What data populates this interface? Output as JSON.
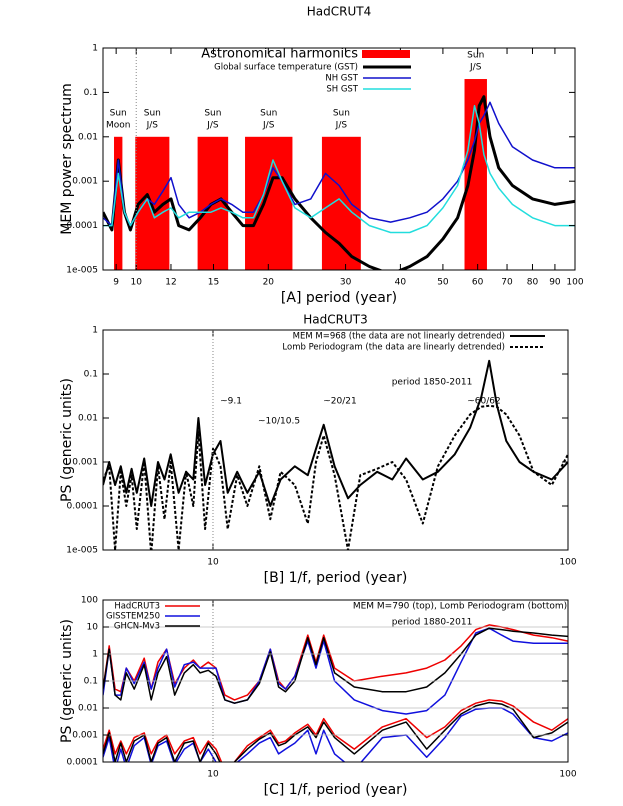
{
  "chart_data": [
    {
      "type": "line",
      "title": "HadCRUT4",
      "xlabel": "[A]   period (year)",
      "ylabel": "MEM power spectrum",
      "xscale": "log",
      "yscale": "log",
      "xlim": [
        8.4,
        100
      ],
      "ylim": [
        1e-05,
        1
      ],
      "xticks": [
        9,
        10,
        12,
        15,
        20,
        30,
        40,
        50,
        60,
        70,
        80,
        90,
        100
      ],
      "yticks": [
        1,
        0.1,
        0.01,
        0.001,
        0.0001,
        {
          "value": 1e-05,
          "label": "1e-005"
        }
      ],
      "grid": false,
      "vline": 10,
      "harmonics": {
        "name": "Astronomical harmonics",
        "color": "#ff0000",
        "bars": [
          {
            "lines": [
              "Sun",
              "Moon"
            ],
            "range": [
              8.9,
              9.3
            ],
            "value": 0.01
          },
          {
            "lines": [
              "Sun",
              "J/S"
            ],
            "range": [
              9.95,
              11.9
            ],
            "value": 0.01
          },
          {
            "lines": [
              "Sun",
              "J/S"
            ],
            "range": [
              13.8,
              16.2
            ],
            "value": 0.01
          },
          {
            "lines": [
              "Sun",
              "J/S"
            ],
            "range": [
              17.7,
              22.7
            ],
            "value": 0.01
          },
          {
            "lines": [
              "Sun",
              "J/S"
            ],
            "range": [
              26.5,
              32.5
            ],
            "value": 0.01
          },
          {
            "lines": [
              "Sun",
              "J/S"
            ],
            "range": [
              56,
              63
            ],
            "value": 0.2
          }
        ]
      },
      "x": [
        8.4,
        8.8,
        9.1,
        9.4,
        9.7,
        10.1,
        10.6,
        11.0,
        11.5,
        12.0,
        12.5,
        13.2,
        14.0,
        14.8,
        15.6,
        16.5,
        17.5,
        18.5,
        19.5,
        20.5,
        21.5,
        23,
        25,
        27,
        29,
        31,
        34,
        38,
        42,
        46,
        50,
        54,
        57,
        59,
        60.5,
        62,
        64,
        67,
        72,
        80,
        90,
        100
      ],
      "series": [
        {
          "name": "Global surface temperature (GST)",
          "color": "#000000",
          "width": 3,
          "values": [
            0.0002,
            8e-05,
            0.003,
            0.0002,
            8e-05,
            0.0003,
            0.0005,
            0.0002,
            0.0003,
            0.0004,
            0.0001,
            8e-05,
            0.00015,
            0.0003,
            0.0004,
            0.0002,
            0.0001,
            0.0001,
            0.0003,
            0.0012,
            0.0012,
            0.0004,
            0.00015,
            7e-05,
            4e-05,
            2e-05,
            1.2e-05,
            8e-06,
            1.2e-05,
            2e-05,
            5e-05,
            0.00015,
            0.0008,
            0.005,
            0.05,
            0.08,
            0.01,
            0.002,
            0.0008,
            0.0004,
            0.0003,
            0.00035
          ]
        },
        {
          "name": "NH GST",
          "color": "#1010cc",
          "width": 1.5,
          "values": [
            0.00015,
            0.0001,
            0.003,
            0.0002,
            0.0001,
            0.0002,
            0.0004,
            0.0003,
            0.0006,
            0.0012,
            0.0003,
            0.00015,
            0.0002,
            0.0003,
            0.0004,
            0.0003,
            0.0002,
            0.0002,
            0.0005,
            0.002,
            0.001,
            0.0003,
            0.0004,
            0.0015,
            0.0008,
            0.0003,
            0.00015,
            0.00012,
            0.00015,
            0.0002,
            0.0004,
            0.001,
            0.003,
            0.008,
            0.02,
            0.03,
            0.06,
            0.02,
            0.006,
            0.003,
            0.002,
            0.002
          ]
        },
        {
          "name": "SH GST",
          "color": "#22dddd",
          "width": 1.5,
          "values": [
            0.0001,
            0.0001,
            0.0015,
            0.0002,
            0.0001,
            0.0002,
            0.0004,
            0.00015,
            0.0002,
            0.00025,
            0.00015,
            0.0002,
            0.0002,
            0.0002,
            0.00025,
            0.0002,
            0.00015,
            0.00015,
            0.0005,
            0.003,
            0.001,
            0.00025,
            0.00015,
            0.00025,
            0.0004,
            0.0002,
            0.0001,
            7e-05,
            7e-05,
            0.0001,
            0.00025,
            0.0008,
            0.005,
            0.05,
            0.02,
            0.004,
            0.0015,
            0.0007,
            0.0003,
            0.00015,
            0.0001,
            0.0001
          ]
        }
      ]
    },
    {
      "type": "line",
      "title": "HadCRUT3",
      "xlabel": "[B]   1/f, period (year)",
      "ylabel": "PS (generic units)",
      "xscale": "log",
      "yscale": "log",
      "xlim": [
        4.9,
        100
      ],
      "ylim": [
        1e-05,
        1
      ],
      "xticks": [
        10,
        100
      ],
      "yticks": [
        1,
        0.1,
        0.01,
        0.001,
        0.0001,
        {
          "value": 1e-05,
          "label": "1e-005"
        }
      ],
      "grid": false,
      "vline": 10,
      "annotations": [
        "~9.1",
        "~10/10.5",
        "~20/21",
        "~60/62",
        "period 1850-2011"
      ],
      "x": [
        4.9,
        5.1,
        5.3,
        5.5,
        5.7,
        5.9,
        6.1,
        6.4,
        6.7,
        7.0,
        7.3,
        7.6,
        8.0,
        8.4,
        8.8,
        9.1,
        9.5,
        10.0,
        10.5,
        11.0,
        11.7,
        12.5,
        13.5,
        14.5,
        15.5,
        17,
        18.5,
        19.5,
        20.5,
        22,
        24,
        26,
        29,
        32,
        35,
        39,
        43,
        48,
        53,
        57,
        60,
        63,
        67,
        73,
        80,
        90,
        100
      ],
      "series": [
        {
          "name": "MEM M=968 (the data are not linearly detrended)",
          "color": "#000000",
          "width": 2,
          "dash": false,
          "values": [
            0.0003,
            0.001,
            0.0003,
            0.0008,
            0.0002,
            0.0007,
            0.0002,
            0.0012,
            0.0001,
            0.001,
            0.0004,
            0.0015,
            0.0002,
            0.0006,
            0.0004,
            0.01,
            0.0003,
            0.0015,
            0.003,
            0.0002,
            0.0006,
            0.0002,
            0.0006,
            0.0001,
            0.0004,
            0.0008,
            0.0005,
            0.002,
            0.007,
            0.0008,
            0.00015,
            0.0003,
            0.0006,
            0.0004,
            0.0012,
            0.0004,
            0.0006,
            0.0015,
            0.006,
            0.03,
            0.2,
            0.02,
            0.003,
            0.001,
            0.0006,
            0.0004,
            0.001
          ]
        },
        {
          "name": "Lomb Periodogram (the data are linearly detrended)",
          "color": "#000000",
          "width": 2,
          "dash": true,
          "values": [
            0.0004,
            0.0008,
            1e-05,
            0.0006,
            0.0001,
            0.0005,
            3e-05,
            0.001,
            8e-06,
            0.0008,
            5e-05,
            0.001,
            1e-05,
            0.0006,
            0.0001,
            0.005,
            3e-05,
            0.002,
            0.0008,
            3e-05,
            0.0005,
            0.0001,
            0.0008,
            5e-05,
            0.0006,
            0.0003,
            4e-05,
            0.001,
            0.004,
            0.0005,
            1e-05,
            0.0005,
            0.0007,
            0.001,
            0.0004,
            4e-05,
            0.0008,
            0.004,
            0.012,
            0.018,
            0.019,
            0.018,
            0.012,
            0.004,
            0.0006,
            0.0003,
            0.0015
          ]
        }
      ]
    },
    {
      "type": "line",
      "xlabel": "[C]   1/f, period (year)",
      "ylabel": "PS (generic units)",
      "xscale": "log",
      "yscale": "log",
      "xlim": [
        4.9,
        100
      ],
      "ylim": [
        0.0001,
        100
      ],
      "xticks": [
        10,
        100
      ],
      "yticks": [
        100,
        10,
        1,
        0.1,
        0.01,
        0.001,
        0.0001
      ],
      "grid": true,
      "vline": 10,
      "annotations": [
        "MEM M=790 (top), Lomb Periodogram (bottom)",
        "period 1880-2011"
      ],
      "x": [
        4.9,
        5.1,
        5.3,
        5.5,
        5.7,
        6.0,
        6.4,
        6.7,
        7.0,
        7.4,
        7.8,
        8.3,
        8.8,
        9.2,
        9.7,
        10.2,
        10.8,
        11.5,
        12.5,
        13.5,
        14.5,
        15.3,
        16,
        17,
        18.5,
        19.5,
        20.5,
        22,
        25,
        30,
        35,
        40,
        45,
        50,
        55,
        60,
        65,
        70,
        80,
        90,
        100
      ],
      "series": [
        {
          "name": "HadCRUT3",
          "color": "#ee0000",
          "width": 1.5,
          "values": [
            0.05,
            2,
            0.05,
            0.04,
            0.3,
            0.1,
            0.7,
            0.05,
            0.5,
            1.5,
            0.08,
            0.3,
            0.6,
            0.3,
            0.5,
            0.3,
            0.03,
            0.02,
            0.03,
            0.1,
            1.5,
            0.1,
            0.05,
            0.15,
            5,
            0.5,
            5,
            0.3,
            0.1,
            0.15,
            0.2,
            0.3,
            0.6,
            2,
            8,
            12,
            10,
            8,
            5,
            4,
            3
          ],
          "lomb_values": [
            0.0003,
            0.0015,
            0.0002,
            0.0006,
            0.0002,
            0.0008,
            0.0012,
            0.0002,
            0.0006,
            0.001,
            0.0002,
            0.0006,
            0.0008,
            0.0002,
            0.0006,
            0.0003,
            5e-05,
            0.0001,
            0.0004,
            0.0008,
            0.0015,
            0.0005,
            0.0006,
            0.0012,
            0.0025,
            0.001,
            0.004,
            0.001,
            0.0003,
            0.002,
            0.004,
            0.0008,
            0.002,
            0.008,
            0.015,
            0.02,
            0.018,
            0.012,
            0.003,
            0.0015,
            0.004
          ]
        },
        {
          "name": "GISSTEM250",
          "color": "#1010dd",
          "width": 1.5,
          "values": [
            0.03,
            1.5,
            0.03,
            0.03,
            0.3,
            0.08,
            0.5,
            0.05,
            0.3,
            1.5,
            0.06,
            0.4,
            0.5,
            0.3,
            0.3,
            0.3,
            0.02,
            0.015,
            0.02,
            0.1,
            1.5,
            0.08,
            0.05,
            0.15,
            3,
            0.3,
            3,
            0.1,
            0.02,
            0.008,
            0.006,
            0.008,
            0.03,
            0.5,
            6,
            9,
            5,
            3,
            2.5,
            2.5,
            2.5
          ],
          "lomb_values": [
            0.00015,
            0.0008,
            5e-05,
            0.0003,
            6e-05,
            0.0004,
            0.0008,
            8e-05,
            0.0004,
            0.0006,
            8e-05,
            0.0003,
            0.0005,
            0.0001,
            0.0003,
            0.0001,
            3e-05,
            8e-05,
            0.0002,
            0.0005,
            0.0008,
            0.0002,
            0.0003,
            0.0005,
            0.0015,
            0.0002,
            0.0015,
            0.0002,
            5e-05,
            0.0008,
            0.001,
            0.00015,
            0.0008,
            0.005,
            0.009,
            0.01,
            0.01,
            0.006,
            0.0008,
            0.0006,
            0.0012
          ]
        },
        {
          "name": "GHCN-Mv3",
          "color": "#000000",
          "width": 1.5,
          "values": [
            0.05,
            1.5,
            0.03,
            0.02,
            0.2,
            0.05,
            0.4,
            0.02,
            0.2,
            0.8,
            0.03,
            0.2,
            0.4,
            0.2,
            0.25,
            0.15,
            0.02,
            0.015,
            0.02,
            0.08,
            1.2,
            0.06,
            0.04,
            0.1,
            4,
            0.4,
            4,
            0.2,
            0.06,
            0.04,
            0.04,
            0.06,
            0.2,
            1,
            5,
            9,
            8,
            7,
            6,
            5,
            4.5
          ],
          "lomb_values": [
            0.0002,
            0.0012,
            0.0001,
            0.0005,
            0.0001,
            0.0006,
            0.001,
            0.0001,
            0.0005,
            0.0008,
            0.0001,
            0.0005,
            0.0006,
            0.0001,
            0.0005,
            0.0002,
            4e-05,
            0.0001,
            0.0003,
            0.0007,
            0.0012,
            0.0004,
            0.0005,
            0.001,
            0.002,
            0.0008,
            0.003,
            0.0008,
            0.0002,
            0.0015,
            0.003,
            0.0003,
            0.0015,
            0.006,
            0.012,
            0.016,
            0.014,
            0.009,
            0.0008,
            0.0012,
            0.003
          ]
        }
      ]
    }
  ]
}
